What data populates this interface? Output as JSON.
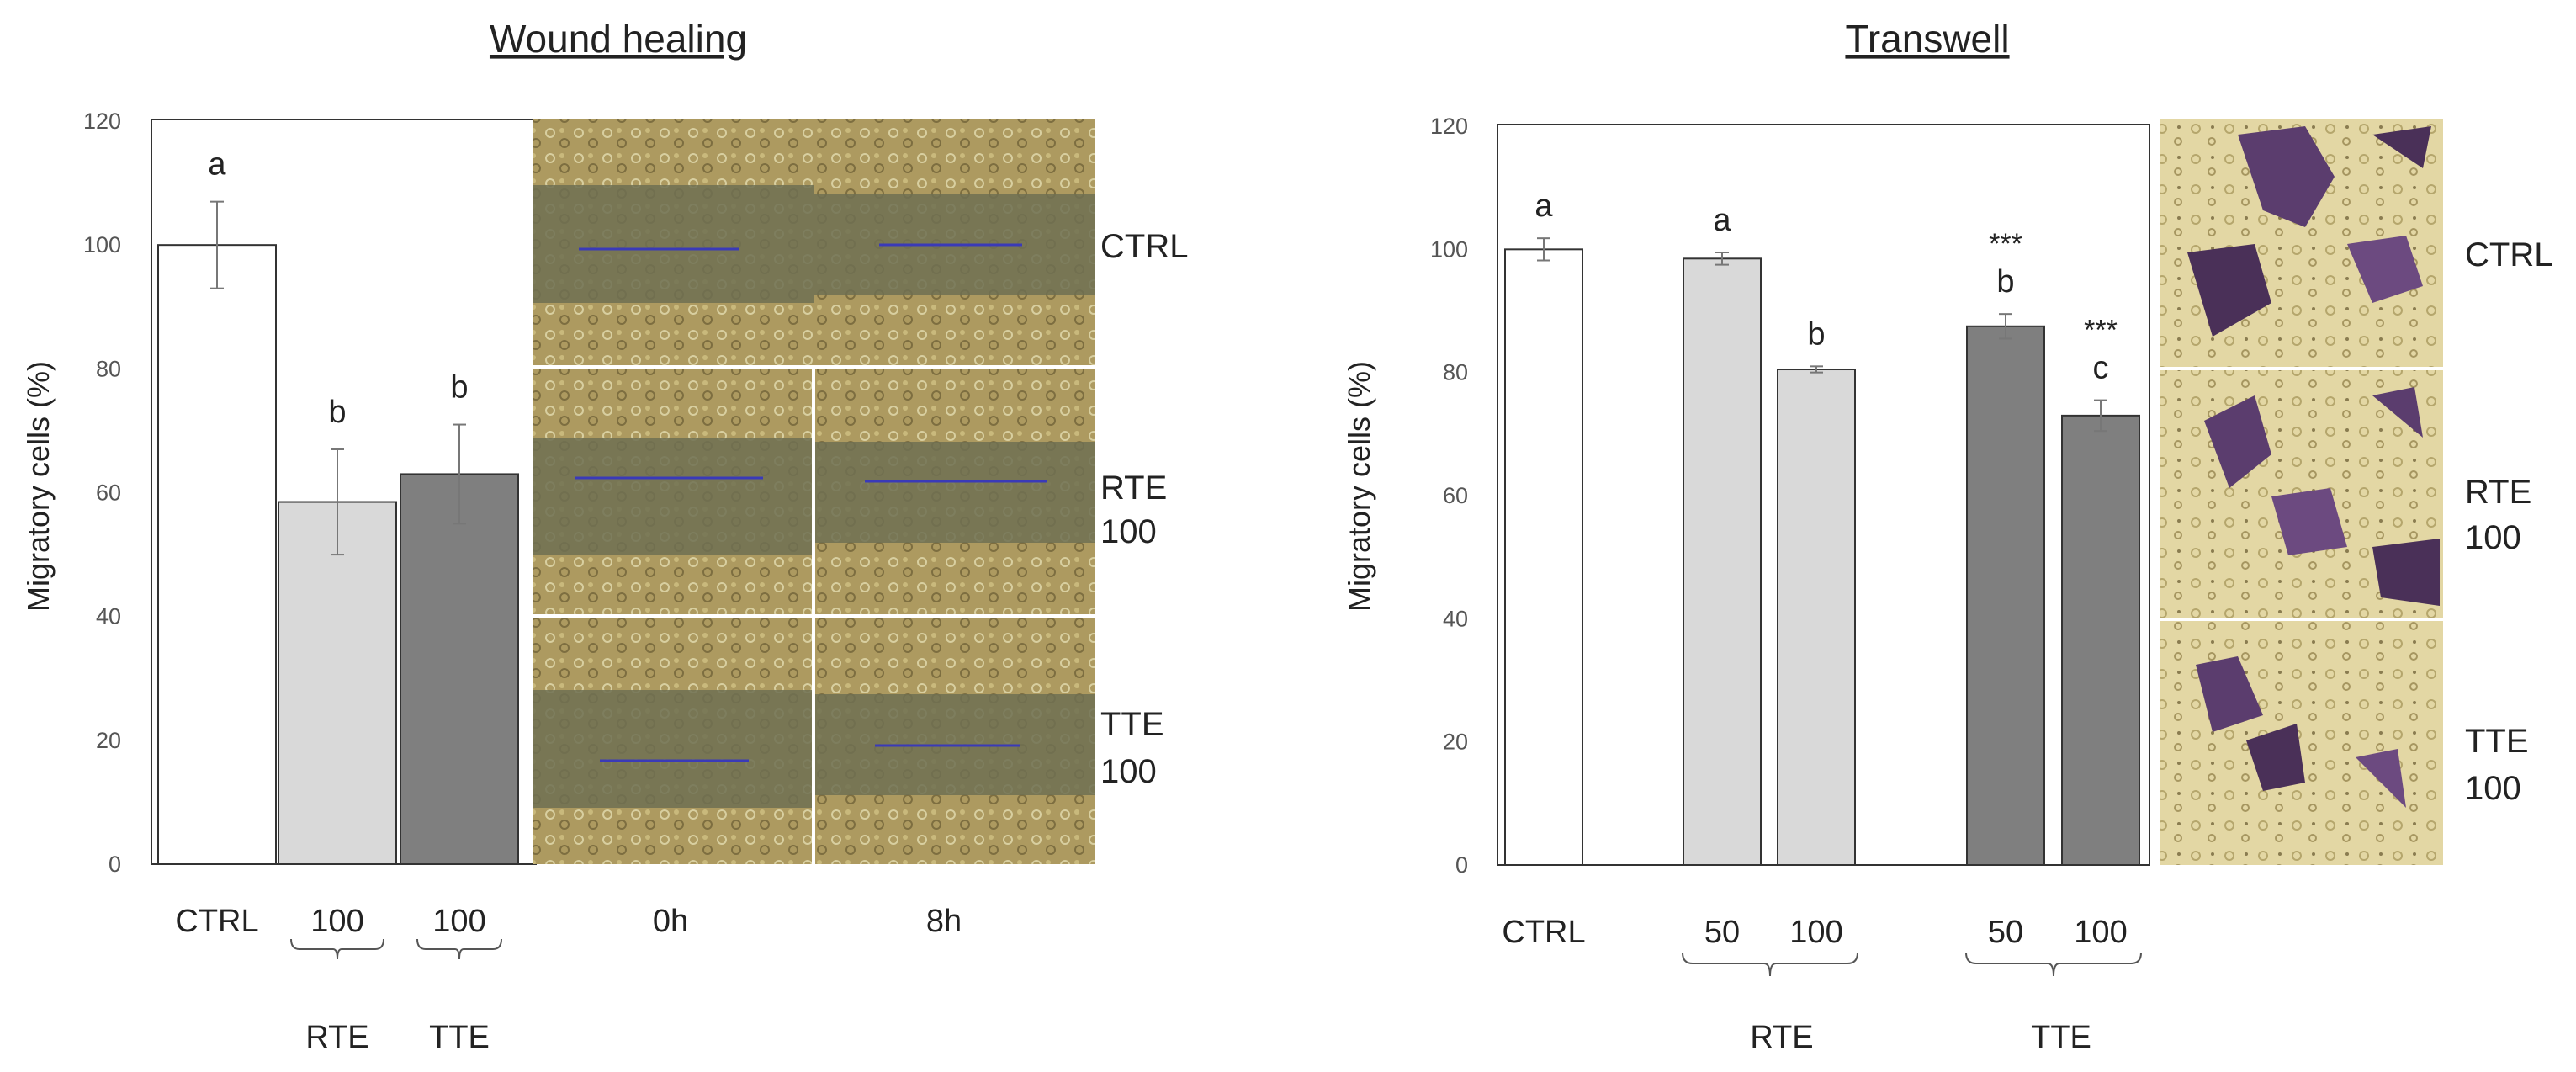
{
  "chart_data": [
    {
      "type": "bar",
      "title": "Wound healing",
      "ylabel": "Migratory cells (%)",
      "xlabel": "",
      "ylim": [
        0,
        120
      ],
      "yticks": [
        "0",
        "20",
        "40",
        "60",
        "80",
        "100",
        "120"
      ],
      "bars": [
        {
          "label": "CTRL",
          "value": 100,
          "error": 7,
          "letter": "a",
          "stars": "",
          "color": "#ffffff"
        },
        {
          "label": "100",
          "value": 58.5,
          "error": 8.5,
          "letter": "b",
          "stars": "",
          "color": "#d9d9d9"
        },
        {
          "label": "100",
          "value": 63,
          "error": 8,
          "letter": "b",
          "stars": "",
          "color": "#7f7f7f"
        }
      ],
      "groups": [
        "RTE",
        "TTE"
      ],
      "image_panel": {
        "columns": [
          "0h",
          "8h"
        ],
        "rows": [
          {
            "line1": "CTRL",
            "line2": ""
          },
          {
            "line1": "RTE",
            "line2": "100"
          },
          {
            "line1": "TTE",
            "line2": "100"
          }
        ]
      }
    },
    {
      "type": "bar",
      "title": "Transwell",
      "ylabel": "Migratory cells (%)",
      "xlabel": "",
      "ylim": [
        0,
        120
      ],
      "yticks": [
        "0",
        "20",
        "40",
        "60",
        "80",
        "100",
        "120"
      ],
      "bars": [
        {
          "label": "CTRL",
          "value": 100,
          "error": 1.8,
          "letter": "a",
          "stars": "",
          "color": "#ffffff"
        },
        {
          "label": "50",
          "value": 98.5,
          "error": 1,
          "letter": "a",
          "stars": "",
          "color": "#d9d9d9"
        },
        {
          "label": "100",
          "value": 80.5,
          "error": 0.5,
          "letter": "b",
          "stars": "",
          "color": "#d9d9d9"
        },
        {
          "label": "50",
          "value": 87.5,
          "error": 2,
          "letter": "b",
          "stars": "***",
          "color": "#7f7f7f"
        },
        {
          "label": "100",
          "value": 73,
          "error": 2.5,
          "letter": "c",
          "stars": "***",
          "color": "#7f7f7f"
        }
      ],
      "groups": [
        "RTE",
        "TTE"
      ],
      "image_panel": {
        "columns": [],
        "rows": [
          {
            "line1": "CTRL",
            "line2": ""
          },
          {
            "line1": "RTE",
            "line2": "100"
          },
          {
            "line1": "TTE",
            "line2": "100"
          }
        ]
      }
    }
  ]
}
